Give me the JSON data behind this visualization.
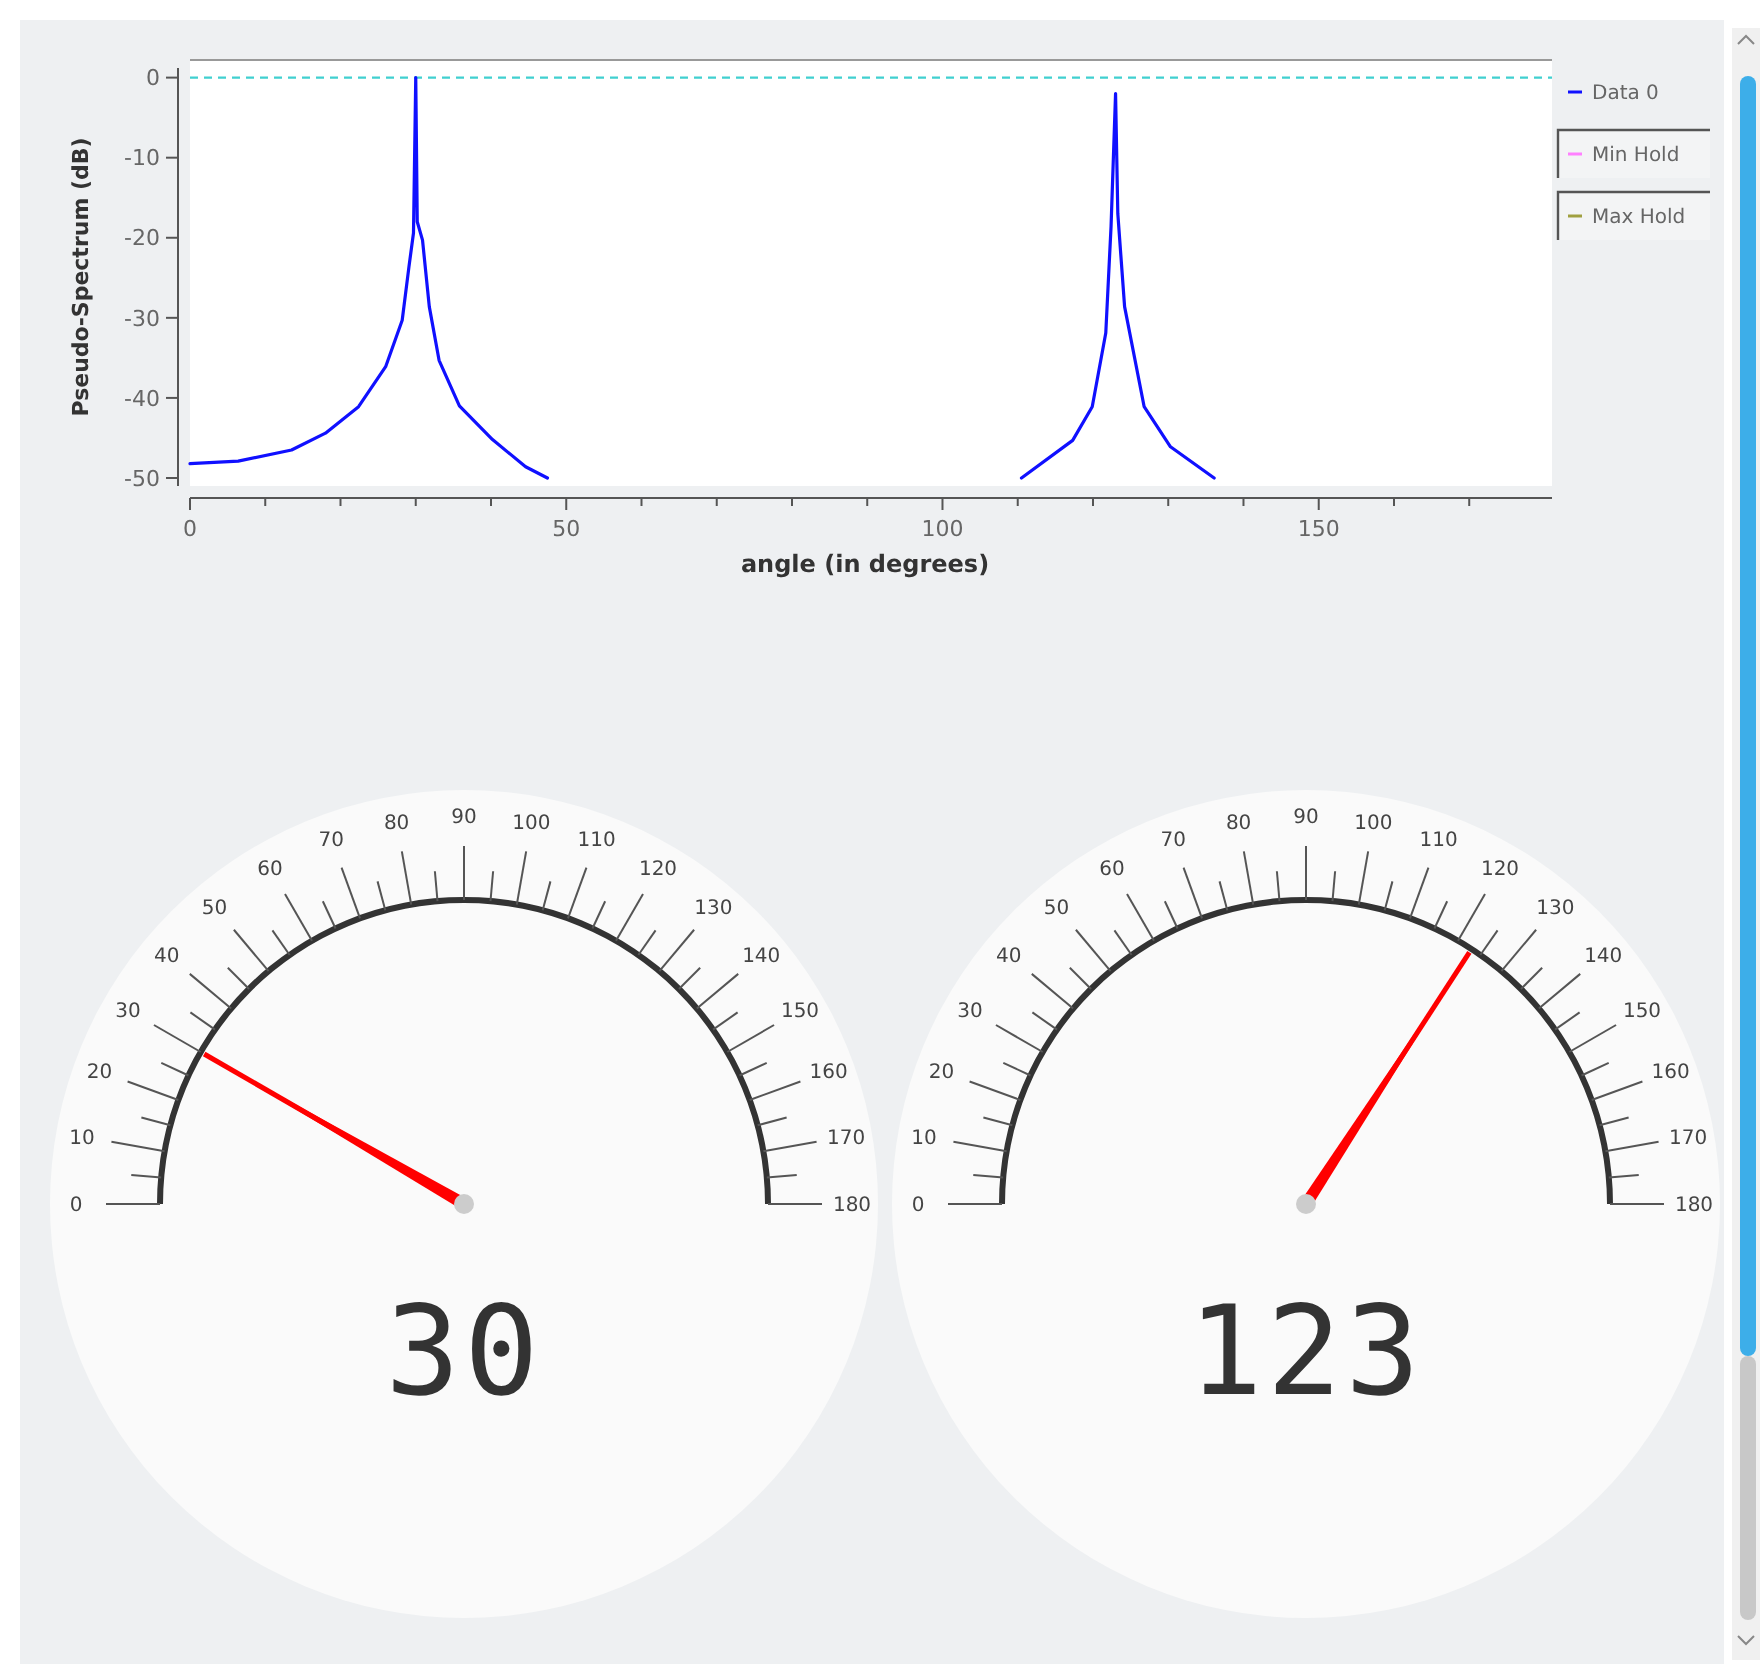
{
  "chart_data": [
    {
      "type": "line",
      "xlabel": "angle (in degrees)",
      "ylabel": "Pseudo-Spectrum (dB)",
      "xlim": [
        0,
        181
      ],
      "ylim": [
        -51,
        1.2
      ],
      "xticks": [
        0,
        {
          "value": 10,
          "label": null
        },
        {
          "value": 20,
          "label": null
        },
        {
          "value": 30,
          "label": null
        },
        {
          "value": 40,
          "label": null
        },
        50,
        {
          "value": 60,
          "label": null
        },
        {
          "value": 70,
          "label": null
        },
        {
          "value": 80,
          "label": null
        },
        {
          "value": 90,
          "label": null
        },
        100,
        {
          "value": 110,
          "label": null
        },
        {
          "value": 120,
          "label": null
        },
        {
          "value": 130,
          "label": null
        },
        {
          "value": 140,
          "label": null
        },
        150,
        {
          "value": 160,
          "label": null
        },
        {
          "value": 170,
          "label": null
        }
      ],
      "yticks": [
        0,
        -10,
        -20,
        -30,
        -40,
        -50
      ],
      "legend": "right",
      "grid": false,
      "marker": "none",
      "ref_lines": [
        {
          "axis": "y",
          "value": 0,
          "color": "#40d0d0",
          "line_style": "dashed"
        }
      ],
      "x": [
        0,
        6.4,
        13.5,
        18,
        22.4,
        26,
        28.2,
        29.1,
        29.7,
        30,
        30.2,
        30.9,
        31.8,
        33.1,
        35.8,
        40.2,
        44.6,
        47.5,
        80,
        110.5,
        117.3,
        119.9,
        121.7,
        122.4,
        123,
        123.3,
        124.2,
        126.8,
        130.3,
        136.1
      ],
      "series": [
        {
          "name": "Data 0",
          "color": "#1010ff",
          "values": [
            -48.2,
            -47.9,
            -46.5,
            -44.4,
            -41.1,
            -36.1,
            -30.3,
            -23.6,
            -19.4,
            0,
            -18,
            -20.3,
            -28.6,
            -35.3,
            -41,
            -45.2,
            -48.6,
            -50,
            null,
            -50,
            -45.3,
            -41.1,
            -31.9,
            -18.6,
            -2,
            -17,
            -28.6,
            -41.1,
            -46.1,
            -50
          ]
        },
        {
          "name": "Min Hold",
          "color": "#ff80ff",
          "values": [
            null,
            null,
            null,
            null,
            null,
            null,
            null,
            null,
            null,
            null,
            null,
            null,
            null,
            null,
            null,
            null,
            null,
            null,
            null,
            null,
            null,
            null,
            null,
            null,
            null,
            null,
            null,
            null,
            null,
            null
          ]
        },
        {
          "name": "Max Hold",
          "color": "#a0a040",
          "values": [
            null,
            null,
            null,
            null,
            null,
            null,
            null,
            null,
            null,
            null,
            null,
            null,
            null,
            null,
            null,
            null,
            null,
            null,
            null,
            null,
            null,
            null,
            null,
            null,
            null,
            null,
            null,
            null,
            null,
            null
          ]
        }
      ]
    },
    {
      "type": "other",
      "annotations": [
        "0",
        "10",
        "20",
        "30",
        "40",
        "50",
        "60",
        "70",
        "80",
        "90",
        "100",
        "110",
        "120",
        "130",
        "140",
        "150",
        "160",
        "170",
        "180"
      ],
      "values": [
        30
      ],
      "data_labels": true
    },
    {
      "type": "other",
      "annotations": [
        "0",
        "10",
        "20",
        "30",
        "40",
        "50",
        "60",
        "70",
        "80",
        "90",
        "100",
        "110",
        "120",
        "130",
        "140",
        "150",
        "160",
        "170",
        "180"
      ],
      "values": [
        123
      ],
      "data_labels": true
    }
  ]
}
